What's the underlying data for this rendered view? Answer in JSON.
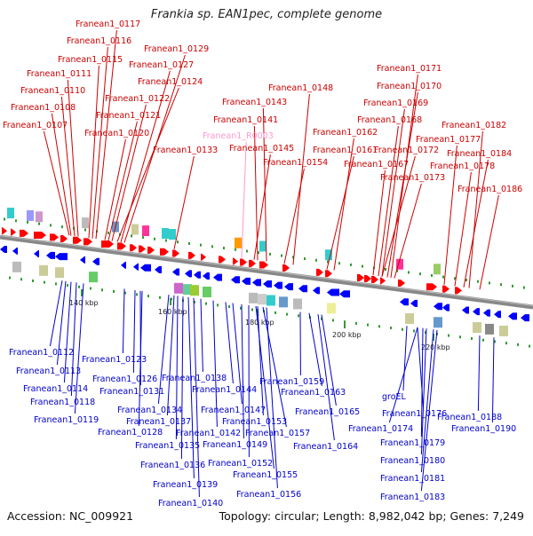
{
  "title": "Frankia sp. EAN1pec, complete genome",
  "footer": {
    "accession": "Accession: NC_009921",
    "summary": "Topology: circular; Length: 8,982,042 bp; Genes: 7,249"
  },
  "colors": {
    "forward_strand": "#ff0000",
    "reverse_strand": "#0000ff",
    "forward_label": "#cc0000",
    "reverse_label": "#0000cc",
    "rna_label": "#ff99cc",
    "genome_line": "#888888",
    "tick": "#339933"
  },
  "scale_ticks": [
    "140 kbp",
    "160 kbp",
    "180 kbp",
    "200 kbp",
    "220 kbp"
  ],
  "top_labels": [
    "Franean1_0117",
    "Franean1_0116",
    "Franean1_0115",
    "Franean1_0111",
    "Franean1_0110",
    "Franean1_0108",
    "Franean1_0107",
    "Franean1_0129",
    "Franean1_0127",
    "Franean1_0124",
    "Franean1_0122",
    "Franean1_0121",
    "Franean1_0120",
    "Franean1_0133",
    "Franean1_0148",
    "Franean1_0143",
    "Franean1_0141",
    "Franean1_R0003",
    "Franean1_0145",
    "Franean1_0154",
    "Franean1_0171",
    "Franean1_0170",
    "Franean1_0169",
    "Franean1_0168",
    "Franean1_0162",
    "Franean1_0161",
    "Franean1_0172",
    "Franean1_0167",
    "Franean1_0173",
    "Franean1_0182",
    "Franean1_0177",
    "Franean1_0184",
    "Franean1_0178",
    "Franean1_0186"
  ],
  "bottom_labels": [
    "Franean1_0112",
    "Franean1_0113",
    "Franean1_0114",
    "Franean1_0118",
    "Franean1_0119",
    "Franean1_0123",
    "Franean1_0126",
    "Franean1_0131",
    "Franean1_0128",
    "Franean1_0134",
    "Franean1_0137",
    "Franean1_0135",
    "Franean1_0136",
    "Franean1_0139",
    "Franean1_0140",
    "Franean1_0138",
    "Franean1_0144",
    "Franean1_0147",
    "Franean1_0142",
    "Franean1_0149",
    "Franean1_0152",
    "Franean1_0155",
    "Franean1_0156",
    "Franean1_0153",
    "Franean1_0157",
    "Franean1_0159",
    "Franean1_0163",
    "Franean1_0165",
    "Franean1_0164",
    "groEL",
    "Franean1_0176",
    "Franean1_0174",
    "Franean1_0179",
    "Franean1_0180",
    "Franean1_0181",
    "Franean1_0183",
    "Franean1_0188",
    "Franean1_0190"
  ]
}
